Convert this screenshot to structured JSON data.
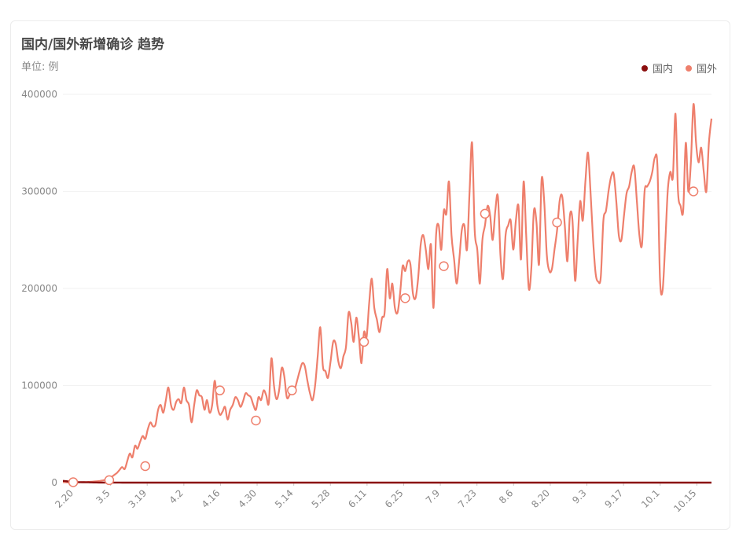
{
  "chart_data": {
    "type": "line",
    "title": "国内/国外新增确诊 趋势",
    "subtitle": "单位: 例",
    "x_tick_labels": [
      "2.20",
      "3.5",
      "3.19",
      "4.2",
      "4.16",
      "4.30",
      "5.14",
      "5.28",
      "6.11",
      "6.25",
      "7.9",
      "7.23",
      "8.6",
      "8.20",
      "9.3",
      "9.17",
      "10.1",
      "10.15"
    ],
    "y_ticks": [
      0,
      100000,
      200000,
      300000,
      400000
    ],
    "ylim": [
      0,
      400000
    ],
    "grid": true,
    "legend_position": "top-right",
    "series": [
      {
        "name": "国内",
        "color": "#8b0f0f",
        "values": [
          1800,
          1500,
          1200,
          1000,
          800,
          600,
          500,
          450,
          400,
          350,
          300,
          250,
          200,
          150,
          120,
          100,
          90,
          80,
          70,
          60,
          55,
          50,
          45,
          40,
          38,
          35,
          33,
          30,
          28,
          26,
          25,
          24,
          23,
          22,
          21,
          20,
          20,
          19,
          19,
          18,
          18,
          18,
          17,
          17,
          17,
          16,
          16,
          16,
          15,
          15,
          15,
          15,
          15,
          15,
          15,
          15,
          15,
          15,
          15,
          15,
          15,
          15,
          15,
          15,
          15,
          15,
          15,
          15,
          15,
          15,
          15,
          15,
          15,
          15,
          15,
          15,
          15,
          15,
          15,
          15,
          15,
          15,
          15,
          15,
          15,
          15,
          15,
          15,
          15,
          15,
          15,
          15,
          15,
          15,
          15,
          15,
          15,
          15,
          15,
          15,
          15,
          15,
          15,
          15,
          15,
          15,
          15,
          15,
          15,
          15,
          15,
          15,
          15,
          15,
          15,
          15,
          15,
          15,
          15,
          15,
          15,
          15,
          15,
          15,
          15,
          15,
          15,
          15,
          15,
          15,
          15,
          15,
          15,
          15,
          15,
          15,
          15,
          15,
          15,
          15,
          15,
          15,
          15,
          15,
          15,
          15,
          15,
          15,
          15,
          15,
          15,
          15,
          15,
          15,
          15,
          15,
          15,
          15,
          15,
          15,
          15,
          15,
          15,
          15,
          15,
          15,
          15,
          15,
          15,
          15,
          15,
          15,
          15,
          15,
          15,
          15,
          15,
          15,
          15,
          15,
          15,
          15,
          15,
          15,
          15,
          15,
          15,
          15,
          15,
          15,
          15,
          15,
          15,
          15,
          15,
          15,
          15,
          15,
          15,
          15,
          15,
          15,
          15,
          15,
          15,
          15,
          15,
          15,
          15,
          15,
          15,
          15,
          15,
          15,
          15,
          15,
          15,
          15,
          15,
          15,
          15,
          15,
          15,
          15,
          15,
          15,
          15,
          15,
          15,
          15,
          15,
          15,
          15,
          15,
          15,
          15,
          15,
          15,
          15,
          15,
          15,
          15,
          15,
          15,
          15,
          15,
          15,
          15,
          15,
          15,
          15,
          15,
          15,
          15,
          15,
          15,
          15,
          15,
          15,
          15,
          15,
          15,
          15,
          15,
          15,
          15,
          15,
          15,
          15,
          15,
          15,
          15,
          15,
          15,
          15,
          15
        ]
      },
      {
        "name": "国外",
        "color": "#ee7f6c",
        "values": [
          500,
          400,
          350,
          300,
          300,
          250,
          300,
          400,
          500,
          600,
          700,
          900,
          1100,
          1300,
          1600,
          2000,
          2600,
          3500,
          4500,
          6000,
          8000,
          10000,
          13000,
          16000,
          14000,
          22000,
          30000,
          26000,
          38000,
          35000,
          42000,
          48000,
          45000,
          55000,
          62000,
          58000,
          60000,
          75000,
          80000,
          72000,
          85000,
          98000,
          80000,
          75000,
          83000,
          86000,
          82000,
          98000,
          85000,
          80000,
          62000,
          80000,
          95000,
          90000,
          88000,
          75000,
          85000,
          72000,
          80000,
          105000,
          80000,
          70000,
          73000,
          78000,
          65000,
          75000,
          80000,
          88000,
          85000,
          78000,
          84000,
          92000,
          90000,
          88000,
          80000,
          75000,
          88000,
          85000,
          95000,
          90000,
          82000,
          128000,
          100000,
          86000,
          95000,
          118000,
          110000,
          88000,
          90000,
          98000,
          96000,
          105000,
          115000,
          123000,
          120000,
          105000,
          92000,
          85000,
          100000,
          130000,
          160000,
          120000,
          115000,
          108000,
          125000,
          145000,
          143000,
          125000,
          118000,
          130000,
          140000,
          175000,
          165000,
          145000,
          170000,
          150000,
          123000,
          155000,
          150000,
          185000,
          210000,
          180000,
          168000,
          155000,
          170000,
          175000,
          220000,
          190000,
          205000,
          180000,
          175000,
          195000,
          223000,
          218000,
          228000,
          225000,
          195000,
          190000,
          210000,
          245000,
          255000,
          240000,
          220000,
          245000,
          180000,
          255000,
          265000,
          240000,
          280000,
          277000,
          310000,
          255000,
          230000,
          205000,
          230000,
          260000,
          265000,
          240000,
          300000,
          350000,
          260000,
          240000,
          205000,
          250000,
          265000,
          285000,
          275000,
          250000,
          280000,
          295000,
          235000,
          210000,
          255000,
          265000,
          270000,
          240000,
          270000,
          285000,
          230000,
          310000,
          255000,
          200000,
          220000,
          280000,
          268000,
          225000,
          312000,
          290000,
          235000,
          218000,
          220000,
          240000,
          260000,
          290000,
          295000,
          265000,
          228000,
          275000,
          270000,
          208000,
          250000,
          290000,
          270000,
          310000,
          340000,
          300000,
          250000,
          215000,
          207000,
          212000,
          270000,
          280000,
          300000,
          315000,
          318000,
          290000,
          255000,
          250000,
          275000,
          298000,
          305000,
          320000,
          325000,
          290000,
          255000,
          245000,
          300000,
          305000,
          310000,
          320000,
          335000,
          325000,
          210000,
          198000,
          245000,
          300000,
          320000,
          315000,
          380000,
          300000,
          285000,
          280000,
          350000,
          300000,
          330000,
          390000,
          350000,
          330000,
          345000,
          320000,
          300000,
          350000,
          375000
        ]
      }
    ],
    "marker_points": [
      {
        "index": 4,
        "value": 400
      },
      {
        "index": 18,
        "value": 2500
      },
      {
        "index": 32,
        "value": 17000
      },
      {
        "index": 61,
        "value": 95000
      },
      {
        "index": 75,
        "value": 64000
      },
      {
        "index": 89,
        "value": 95000
      },
      {
        "index": 117,
        "value": 145000
      },
      {
        "index": 133,
        "value": 190000
      },
      {
        "index": 148,
        "value": 223000
      },
      {
        "index": 164,
        "value": 277000
      },
      {
        "index": 192,
        "value": 268000
      },
      {
        "index": 245,
        "value": 300000
      }
    ]
  }
}
